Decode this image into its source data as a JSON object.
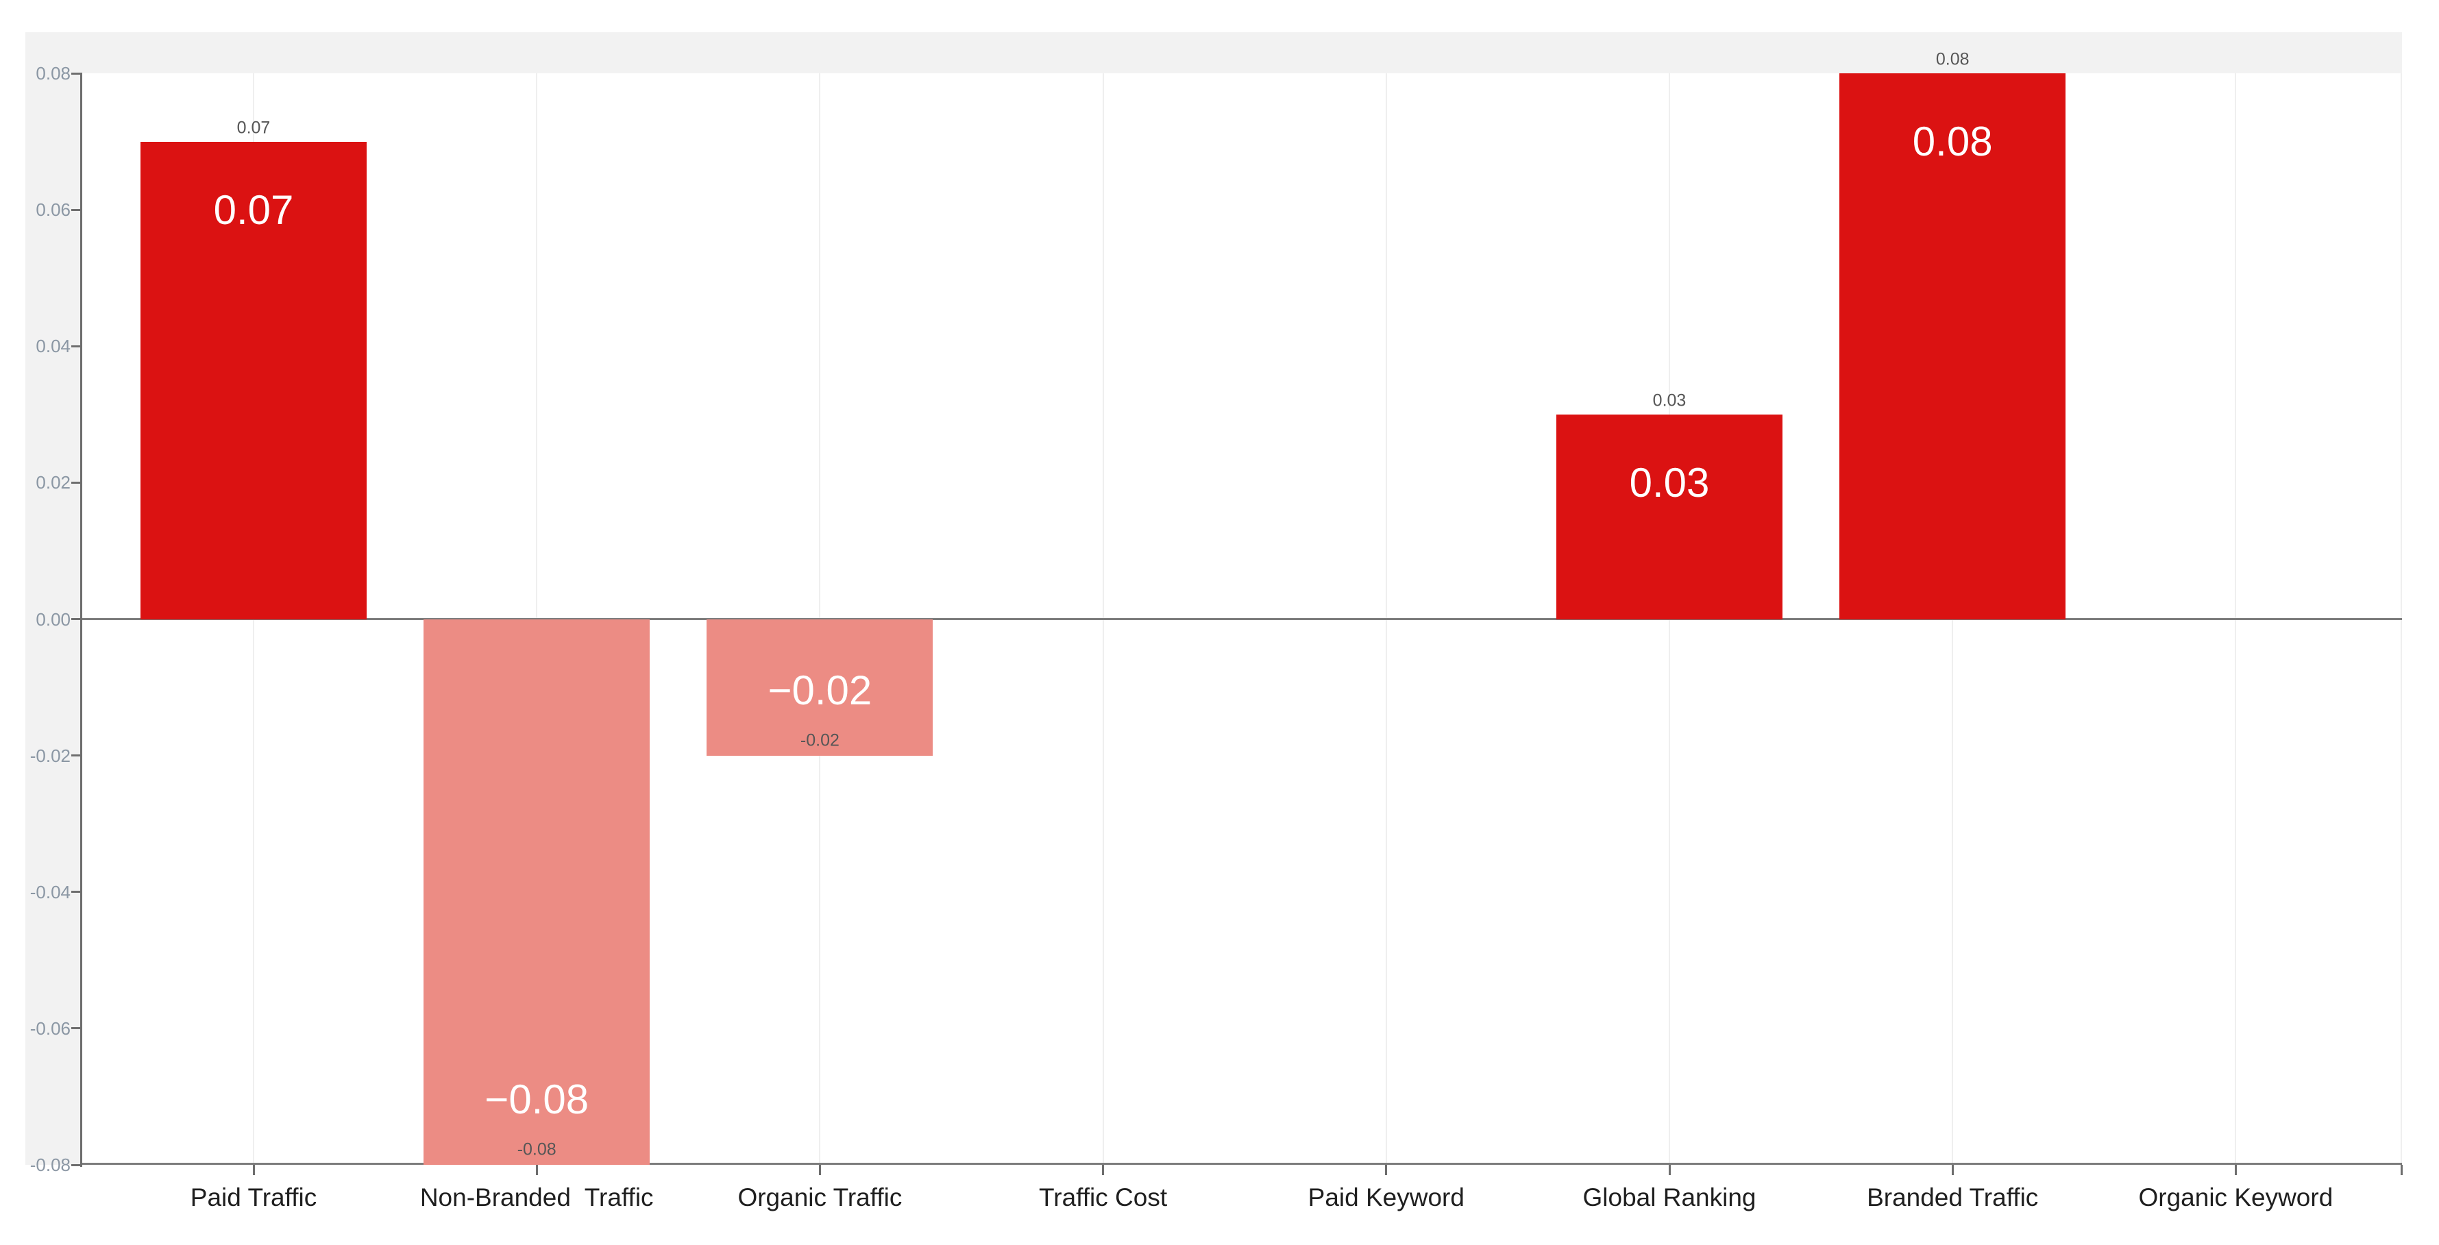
{
  "chart_data": {
    "type": "bar",
    "title": "",
    "xlabel": "",
    "ylabel": "",
    "categories": [
      "Paid Traffic",
      "Non-Branded  Traffic",
      "Organic Traffic",
      "Traffic Cost",
      "Paid Keyword",
      "Global Ranking",
      "Branded Traffic",
      "Organic Keyword"
    ],
    "values": [
      0.07,
      -0.08,
      -0.02,
      0,
      0,
      0.03,
      0.08,
      0
    ],
    "bar_inside_labels": [
      "0.07",
      "−0.08",
      "−0.02",
      "",
      "",
      "0.03",
      "0.08",
      ""
    ],
    "bar_end_labels": [
      "0.07",
      "-0.08",
      "-0.02",
      "",
      "",
      "0.03",
      "0.08",
      ""
    ],
    "ylim": [
      -0.08,
      0.08
    ],
    "yticks": [
      0.08,
      0.06,
      0.04,
      0.02,
      0.0,
      -0.02,
      -0.04,
      -0.06,
      -0.08
    ],
    "ytick_labels": [
      "0.08",
      "0.06",
      "0.04",
      "0.02",
      "0.00",
      "-0.02",
      "-0.04",
      "-0.06",
      "-0.08"
    ],
    "grid": "vertical gridlines at category centers, no horizontal gridlines",
    "legend_position": "none",
    "colors": {
      "positive_bar": "#db1212",
      "negative_bar": "#ec8c84",
      "inside_label_text": "#ffffff",
      "end_label_text": "#565656",
      "axis_line": "#6e6e6e",
      "zero_line": "#7d7d7d",
      "gridline": "#efefef",
      "panel_background": "#f2f2f2",
      "plot_background": "#ffffff",
      "ytick_label_text": "#8b97a4",
      "xtick_label_text": "#1f1f1f"
    }
  }
}
